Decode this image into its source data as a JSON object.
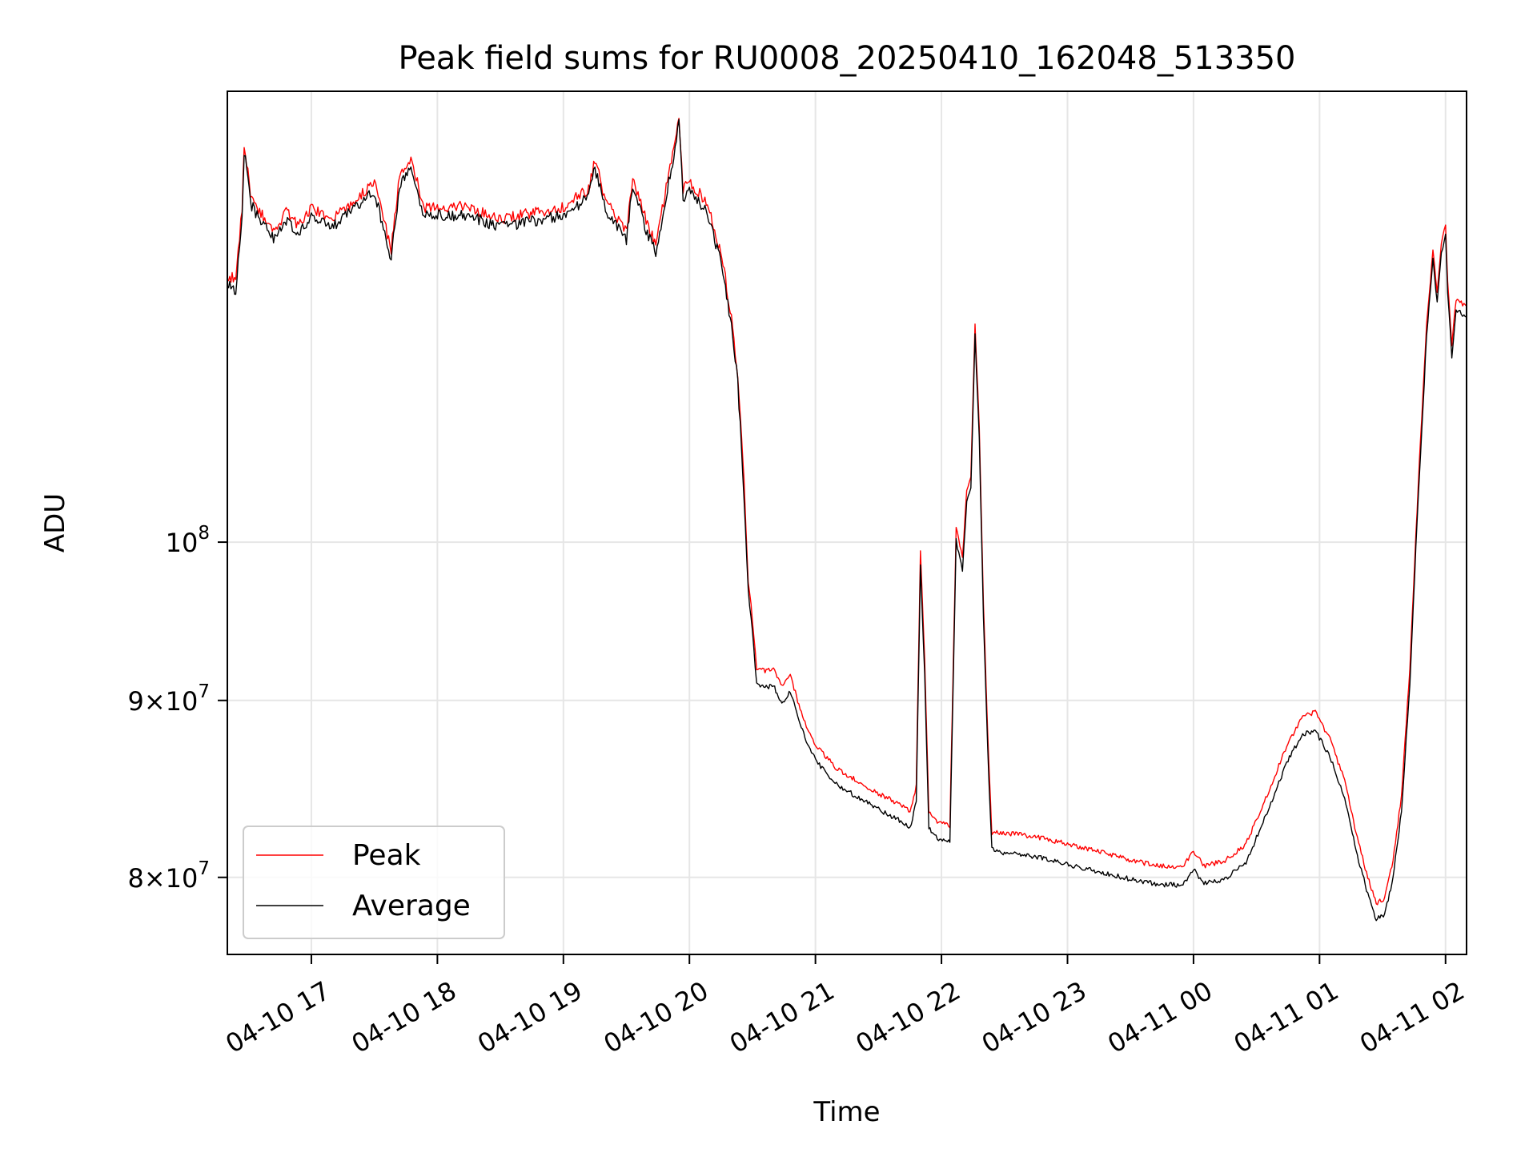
{
  "chart_data": {
    "type": "line",
    "title": "Peak field sums for RU0008_20250410_162048_513350",
    "xlabel": "Time",
    "ylabel": "ADU",
    "y_scale": "log",
    "xlim": [
      "2025-04-10 16:20",
      "2025-04-11 02:10"
    ],
    "ylim": [
      76000000,
      135000000
    ],
    "grid": true,
    "legend_position": "lower-left",
    "x_ticks": [
      {
        "time": "2025-04-10 17:00",
        "label": "04-10 17"
      },
      {
        "time": "2025-04-10 18:00",
        "label": "04-10 18"
      },
      {
        "time": "2025-04-10 19:00",
        "label": "04-10 19"
      },
      {
        "time": "2025-04-10 20:00",
        "label": "04-10 20"
      },
      {
        "time": "2025-04-10 21:00",
        "label": "04-10 21"
      },
      {
        "time": "2025-04-10 22:00",
        "label": "04-10 22"
      },
      {
        "time": "2025-04-10 23:00",
        "label": "04-10 23"
      },
      {
        "time": "2025-04-11 00:00",
        "label": "04-11 00"
      },
      {
        "time": "2025-04-11 01:00",
        "label": "04-11 01"
      },
      {
        "time": "2025-04-11 02:00",
        "label": "04-11 02"
      }
    ],
    "y_ticks": [
      {
        "value": 80000000,
        "mantissa": "8",
        "base": "10",
        "exp": "7"
      },
      {
        "value": 90000000,
        "mantissa": "9",
        "base": "10",
        "exp": "7"
      },
      {
        "value": 100000000,
        "mantissa": "",
        "base": "10",
        "exp": "8"
      }
    ],
    "colors": {
      "peak": "#ff0000",
      "average": "#000000",
      "grid": "#e6e6e6"
    },
    "series": [
      {
        "name": "Peak",
        "color": "#ff0000",
        "points": [
          [
            "2025-04-10 16:20",
            119500000
          ],
          [
            "2025-04-10 16:24",
            119000000
          ],
          [
            "2025-04-10 16:27",
            125000000
          ],
          [
            "2025-04-10 16:28",
            130500000
          ],
          [
            "2025-04-10 16:31",
            126000000
          ],
          [
            "2025-04-10 16:36",
            124500000
          ],
          [
            "2025-04-10 16:42",
            123000000
          ],
          [
            "2025-04-10 16:48",
            124500000
          ],
          [
            "2025-04-10 16:54",
            123500000
          ],
          [
            "2025-04-10 17:00",
            125000000
          ],
          [
            "2025-04-10 17:10",
            124000000
          ],
          [
            "2025-04-10 17:20",
            125500000
          ],
          [
            "2025-04-10 17:30",
            127000000
          ],
          [
            "2025-04-10 17:38",
            121500000
          ],
          [
            "2025-04-10 17:42",
            127500000
          ],
          [
            "2025-04-10 17:48",
            129000000
          ],
          [
            "2025-04-10 17:53",
            125000000
          ],
          [
            "2025-04-10 18:00",
            125000000
          ],
          [
            "2025-04-10 18:15",
            125000000
          ],
          [
            "2025-04-10 18:30",
            124000000
          ],
          [
            "2025-04-10 18:45",
            124500000
          ],
          [
            "2025-04-10 19:00",
            125000000
          ],
          [
            "2025-04-10 19:12",
            126500000
          ],
          [
            "2025-04-10 19:15",
            129000000
          ],
          [
            "2025-04-10 19:20",
            125500000
          ],
          [
            "2025-04-10 19:30",
            123000000
          ],
          [
            "2025-04-10 19:33",
            127500000
          ],
          [
            "2025-04-10 19:40",
            123500000
          ],
          [
            "2025-04-10 19:44",
            122000000
          ],
          [
            "2025-04-10 19:52",
            129500000
          ],
          [
            "2025-04-10 19:55",
            133000000
          ],
          [
            "2025-04-10 19:57",
            126500000
          ],
          [
            "2025-04-10 20:00",
            127000000
          ],
          [
            "2025-04-10 20:08",
            125500000
          ],
          [
            "2025-04-10 20:12",
            123000000
          ],
          [
            "2025-04-10 20:16",
            120500000
          ],
          [
            "2025-04-10 20:20",
            116000000
          ],
          [
            "2025-04-10 20:23",
            112000000
          ],
          [
            "2025-04-10 20:26",
            104000000
          ],
          [
            "2025-04-10 20:28",
            97500000
          ],
          [
            "2025-04-10 20:30",
            95000000
          ],
          [
            "2025-04-10 20:32",
            92000000
          ],
          [
            "2025-04-10 20:36",
            91800000
          ],
          [
            "2025-04-10 20:40",
            92000000
          ],
          [
            "2025-04-10 20:44",
            90800000
          ],
          [
            "2025-04-10 20:48",
            91500000
          ],
          [
            "2025-04-10 20:51",
            90200000
          ],
          [
            "2025-04-10 20:55",
            88700000
          ],
          [
            "2025-04-10 21:00",
            87400000
          ],
          [
            "2025-04-10 21:10",
            86000000
          ],
          [
            "2025-04-10 21:20",
            85300000
          ],
          [
            "2025-04-10 21:30",
            84600000
          ],
          [
            "2025-04-10 21:40",
            84000000
          ],
          [
            "2025-04-10 21:45",
            83600000
          ],
          [
            "2025-04-10 21:48",
            85000000
          ],
          [
            "2025-04-10 21:50",
            99500000
          ],
          [
            "2025-04-10 21:52",
            92500000
          ],
          [
            "2025-04-10 21:54",
            83600000
          ],
          [
            "2025-04-10 21:58",
            83000000
          ],
          [
            "2025-04-10 22:04",
            82800000
          ],
          [
            "2025-04-10 22:07",
            101000000
          ],
          [
            "2025-04-10 22:10",
            99000000
          ],
          [
            "2025-04-10 22:12",
            103500000
          ],
          [
            "2025-04-10 22:14",
            104500000
          ],
          [
            "2025-04-10 22:16",
            115500000
          ],
          [
            "2025-04-10 22:18",
            108000000
          ],
          [
            "2025-04-10 22:20",
            96000000
          ],
          [
            "2025-04-10 22:22",
            88000000
          ],
          [
            "2025-04-10 22:24",
            82400000
          ],
          [
            "2025-04-10 22:30",
            82400000
          ],
          [
            "2025-04-10 22:45",
            82200000
          ],
          [
            "2025-04-10 23:00",
            81800000
          ],
          [
            "2025-04-10 23:15",
            81400000
          ],
          [
            "2025-04-10 23:30",
            80900000
          ],
          [
            "2025-04-10 23:45",
            80600000
          ],
          [
            "2025-04-10 23:55",
            80600000
          ],
          [
            "2025-04-11 00:00",
            81400000
          ],
          [
            "2025-04-11 00:05",
            80600000
          ],
          [
            "2025-04-11 00:15",
            80900000
          ],
          [
            "2025-04-11 00:25",
            81800000
          ],
          [
            "2025-04-11 00:35",
            84500000
          ],
          [
            "2025-04-11 00:45",
            87500000
          ],
          [
            "2025-04-11 00:52",
            89000000
          ],
          [
            "2025-04-11 00:58",
            89300000
          ],
          [
            "2025-04-11 01:05",
            87700000
          ],
          [
            "2025-04-11 01:12",
            85300000
          ],
          [
            "2025-04-11 01:18",
            82100000
          ],
          [
            "2025-04-11 01:23",
            80000000
          ],
          [
            "2025-04-11 01:27",
            78600000
          ],
          [
            "2025-04-11 01:31",
            78900000
          ],
          [
            "2025-04-11 01:35",
            80900000
          ],
          [
            "2025-04-11 01:39",
            84500000
          ],
          [
            "2025-04-11 01:43",
            92000000
          ],
          [
            "2025-04-11 01:47",
            104000000
          ],
          [
            "2025-04-11 01:51",
            115500000
          ],
          [
            "2025-04-11 01:54",
            121500000
          ],
          [
            "2025-04-11 01:56",
            118000000
          ],
          [
            "2025-04-11 01:58",
            122000000
          ],
          [
            "2025-04-11 02:00",
            123500000
          ],
          [
            "2025-04-11 02:01",
            119000000
          ],
          [
            "2025-04-11 02:03",
            114000000
          ],
          [
            "2025-04-11 02:05",
            117500000
          ],
          [
            "2025-04-11 02:10",
            117000000
          ]
        ]
      },
      {
        "name": "Average",
        "color": "#000000",
        "points": [
          [
            "2025-04-10 16:20",
            118800000
          ],
          [
            "2025-04-10 16:24",
            118300000
          ],
          [
            "2025-04-10 16:27",
            124300000
          ],
          [
            "2025-04-10 16:28",
            129800000
          ],
          [
            "2025-04-10 16:31",
            125300000
          ],
          [
            "2025-04-10 16:36",
            123800000
          ],
          [
            "2025-04-10 16:42",
            122300000
          ],
          [
            "2025-04-10 16:48",
            123800000
          ],
          [
            "2025-04-10 16:54",
            122800000
          ],
          [
            "2025-04-10 17:00",
            124300000
          ],
          [
            "2025-04-10 17:10",
            123300000
          ],
          [
            "2025-04-10 17:20",
            124800000
          ],
          [
            "2025-04-10 17:30",
            126300000
          ],
          [
            "2025-04-10 17:38",
            120800000
          ],
          [
            "2025-04-10 17:42",
            126800000
          ],
          [
            "2025-04-10 17:48",
            128300000
          ],
          [
            "2025-04-10 17:53",
            124300000
          ],
          [
            "2025-04-10 18:00",
            124300000
          ],
          [
            "2025-04-10 18:15",
            124300000
          ],
          [
            "2025-04-10 18:30",
            123300000
          ],
          [
            "2025-04-10 18:45",
            123800000
          ],
          [
            "2025-04-10 19:00",
            124300000
          ],
          [
            "2025-04-10 19:12",
            125800000
          ],
          [
            "2025-04-10 19:15",
            128300000
          ],
          [
            "2025-04-10 19:20",
            124800000
          ],
          [
            "2025-04-10 19:30",
            122300000
          ],
          [
            "2025-04-10 19:33",
            126800000
          ],
          [
            "2025-04-10 19:40",
            122800000
          ],
          [
            "2025-04-10 19:44",
            121300000
          ],
          [
            "2025-04-10 19:52",
            128800000
          ],
          [
            "2025-04-10 19:55",
            132300000
          ],
          [
            "2025-04-10 19:57",
            125800000
          ],
          [
            "2025-04-10 20:00",
            126300000
          ],
          [
            "2025-04-10 20:08",
            124800000
          ],
          [
            "2025-04-10 20:12",
            122300000
          ],
          [
            "2025-04-10 20:16",
            119800000
          ],
          [
            "2025-04-10 20:20",
            115300000
          ],
          [
            "2025-04-10 20:23",
            111300000
          ],
          [
            "2025-04-10 20:26",
            103300000
          ],
          [
            "2025-04-10 20:28",
            96800000
          ],
          [
            "2025-04-10 20:30",
            94300000
          ],
          [
            "2025-04-10 20:32",
            91000000
          ],
          [
            "2025-04-10 20:36",
            90800000
          ],
          [
            "2025-04-10 20:40",
            90900000
          ],
          [
            "2025-04-10 20:44",
            89800000
          ],
          [
            "2025-04-10 20:48",
            90500000
          ],
          [
            "2025-04-10 20:51",
            89300000
          ],
          [
            "2025-04-10 20:55",
            87800000
          ],
          [
            "2025-04-10 21:00",
            86500000
          ],
          [
            "2025-04-10 21:10",
            85100000
          ],
          [
            "2025-04-10 21:20",
            84400000
          ],
          [
            "2025-04-10 21:30",
            83700000
          ],
          [
            "2025-04-10 21:40",
            83100000
          ],
          [
            "2025-04-10 21:45",
            82700000
          ],
          [
            "2025-04-10 21:48",
            84100000
          ],
          [
            "2025-04-10 21:50",
            98500000
          ],
          [
            "2025-04-10 21:52",
            91600000
          ],
          [
            "2025-04-10 21:54",
            82700000
          ],
          [
            "2025-04-10 21:58",
            82100000
          ],
          [
            "2025-04-10 22:04",
            81900000
          ],
          [
            "2025-04-10 22:07",
            100100000
          ],
          [
            "2025-04-10 22:10",
            98100000
          ],
          [
            "2025-04-10 22:12",
            102600000
          ],
          [
            "2025-04-10 22:14",
            103600000
          ],
          [
            "2025-04-10 22:16",
            114700000
          ],
          [
            "2025-04-10 22:18",
            107200000
          ],
          [
            "2025-04-10 22:20",
            95200000
          ],
          [
            "2025-04-10 22:22",
            87200000
          ],
          [
            "2025-04-10 22:24",
            81500000
          ],
          [
            "2025-04-10 22:30",
            81300000
          ],
          [
            "2025-04-10 22:45",
            81100000
          ],
          [
            "2025-04-10 23:00",
            80700000
          ],
          [
            "2025-04-10 23:15",
            80300000
          ],
          [
            "2025-04-10 23:30",
            79900000
          ],
          [
            "2025-04-10 23:45",
            79600000
          ],
          [
            "2025-04-10 23:55",
            79600000
          ],
          [
            "2025-04-11 00:00",
            80400000
          ],
          [
            "2025-04-11 00:05",
            79700000
          ],
          [
            "2025-04-11 00:15",
            79900000
          ],
          [
            "2025-04-11 00:25",
            80800000
          ],
          [
            "2025-04-11 00:35",
            83500000
          ],
          [
            "2025-04-11 00:45",
            86500000
          ],
          [
            "2025-04-11 00:52",
            88000000
          ],
          [
            "2025-04-11 00:58",
            88200000
          ],
          [
            "2025-04-11 01:05",
            86700000
          ],
          [
            "2025-04-11 01:12",
            84300000
          ],
          [
            "2025-04-11 01:18",
            81200000
          ],
          [
            "2025-04-11 01:23",
            79100000
          ],
          [
            "2025-04-11 01:27",
            77800000
          ],
          [
            "2025-04-11 01:31",
            78000000
          ],
          [
            "2025-04-11 01:35",
            80000000
          ],
          [
            "2025-04-11 01:39",
            83600000
          ],
          [
            "2025-04-11 01:43",
            91100000
          ],
          [
            "2025-04-11 01:47",
            103200000
          ],
          [
            "2025-04-11 01:51",
            114700000
          ],
          [
            "2025-04-11 01:54",
            120700000
          ],
          [
            "2025-04-11 01:56",
            117200000
          ],
          [
            "2025-04-11 01:58",
            121200000
          ],
          [
            "2025-04-11 02:00",
            122700000
          ],
          [
            "2025-04-11 02:01",
            118200000
          ],
          [
            "2025-04-11 02:03",
            113200000
          ],
          [
            "2025-04-11 02:05",
            116700000
          ],
          [
            "2025-04-11 02:10",
            116200000
          ]
        ]
      }
    ]
  }
}
